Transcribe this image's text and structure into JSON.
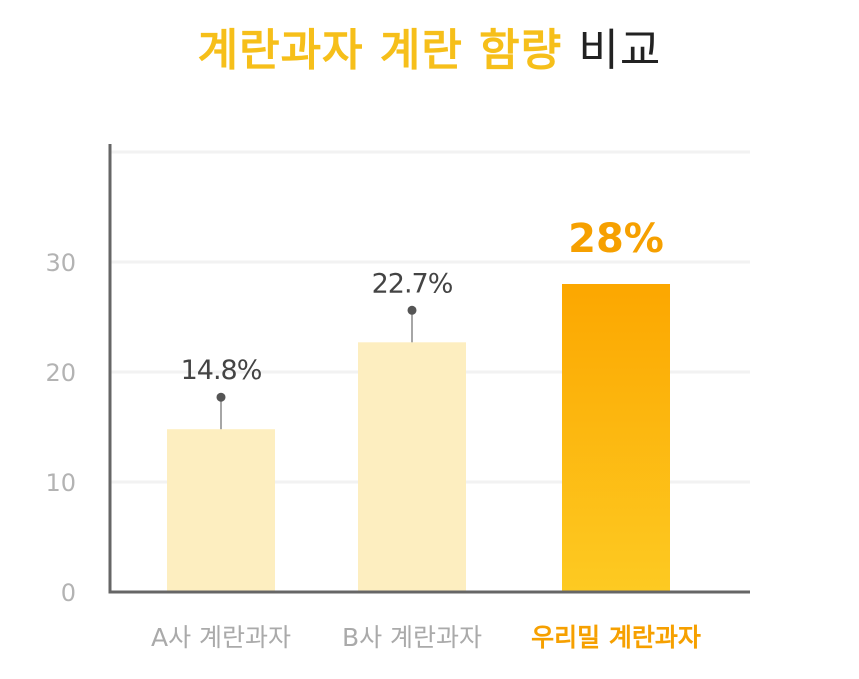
{
  "title": {
    "highlight": "계란과자 계란 함량",
    "rest": "비교"
  },
  "colors": {
    "title_accent": "#f6bf1a",
    "pale_bar": "#fdeec0",
    "highlight_bar_top": "#fca700",
    "highlight_bar_bottom": "#fdca22",
    "highlight_text": "#f6a000",
    "value_label": "#444444",
    "tick_label": "#b3b3b3",
    "category_label": "#aaaaaa",
    "axis": "#666666",
    "grid": "#f2f2f2"
  },
  "chart_data": {
    "type": "bar",
    "title": "계란과자 계란 함량 비교",
    "categories": [
      "A사 계란과자",
      "B사 계란과자",
      "우리밀 계란과자"
    ],
    "values": [
      14.8,
      22.7,
      28
    ],
    "value_labels": [
      "14.8%",
      "22.7%",
      "28%"
    ],
    "highlight_index": 2,
    "xlabel": "",
    "ylabel": "",
    "ylim": [
      0,
      40
    ],
    "yticks": [
      0,
      10,
      20,
      30
    ],
    "ytick_labels": [
      "0",
      "10",
      "20",
      "30"
    ],
    "grid": true,
    "legend": "none"
  }
}
